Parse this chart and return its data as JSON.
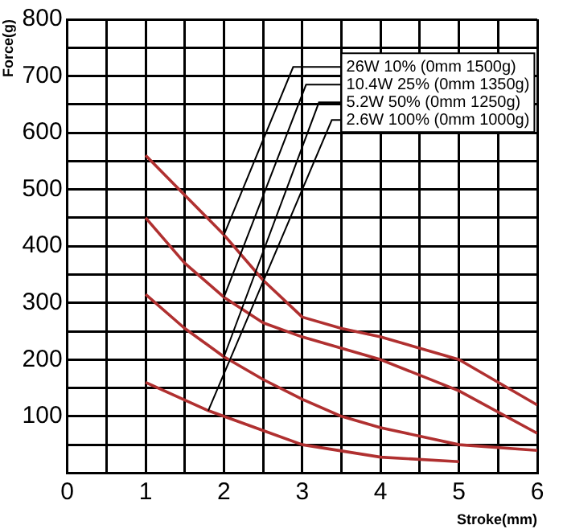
{
  "chart_data": {
    "type": "line",
    "xlabel": "Stroke(mm)",
    "ylabel": "Force(g)",
    "xlim": [
      0,
      6
    ],
    "ylim": [
      0,
      800
    ],
    "xticks": [
      0,
      {
        "value": 0.5,
        "label": null
      },
      1,
      {
        "value": 1.5,
        "label": null
      },
      2,
      {
        "value": 2.5,
        "label": null
      },
      3,
      {
        "value": 3.5,
        "label": null
      },
      4,
      {
        "value": 4.5,
        "label": null
      },
      5,
      {
        "value": 5.5,
        "label": null
      },
      6
    ],
    "yticks": [
      {
        "value": 0,
        "label": null
      },
      {
        "value": 50,
        "label": null
      },
      100,
      {
        "value": 150,
        "label": null
      },
      200,
      {
        "value": 250,
        "label": null
      },
      300,
      {
        "value": 350,
        "label": null
      },
      400,
      {
        "value": 450,
        "label": null
      },
      500,
      {
        "value": 550,
        "label": null
      },
      600,
      {
        "value": 650,
        "label": null
      },
      700,
      {
        "value": 750,
        "label": null
      },
      800
    ],
    "grid": true,
    "legend": false,
    "marker": "none",
    "line_style": "solid",
    "series": [
      {
        "name": "26W 10% (0mm 1500g)",
        "color": "#b03030",
        "x": [
          1,
          1.5,
          2,
          2.5,
          3,
          3.5,
          4,
          5,
          6
        ],
        "values": [
          560,
          490,
          420,
          340,
          275,
          255,
          240,
          200,
          120
        ]
      },
      {
        "name": "10.4W 25% (0mm 1350g)",
        "color": "#b03030",
        "x": [
          1,
          1.5,
          2,
          2.5,
          3,
          4,
          5,
          6
        ],
        "values": [
          450,
          370,
          310,
          265,
          240,
          200,
          145,
          70
        ]
      },
      {
        "name": "5.2W 50% (0mm 1250g)",
        "color": "#b03030",
        "x": [
          1,
          1.5,
          2,
          2.5,
          3,
          3.5,
          4,
          5,
          6
        ],
        "values": [
          315,
          255,
          205,
          165,
          130,
          100,
          80,
          50,
          40
        ]
      },
      {
        "name": "2.6W 100% (0mm 1000g)",
        "color": "#b03030",
        "x": [
          1,
          1.8,
          2.5,
          3,
          4,
          5
        ],
        "values": [
          160,
          110,
          75,
          50,
          28,
          20
        ]
      }
    ]
  }
}
